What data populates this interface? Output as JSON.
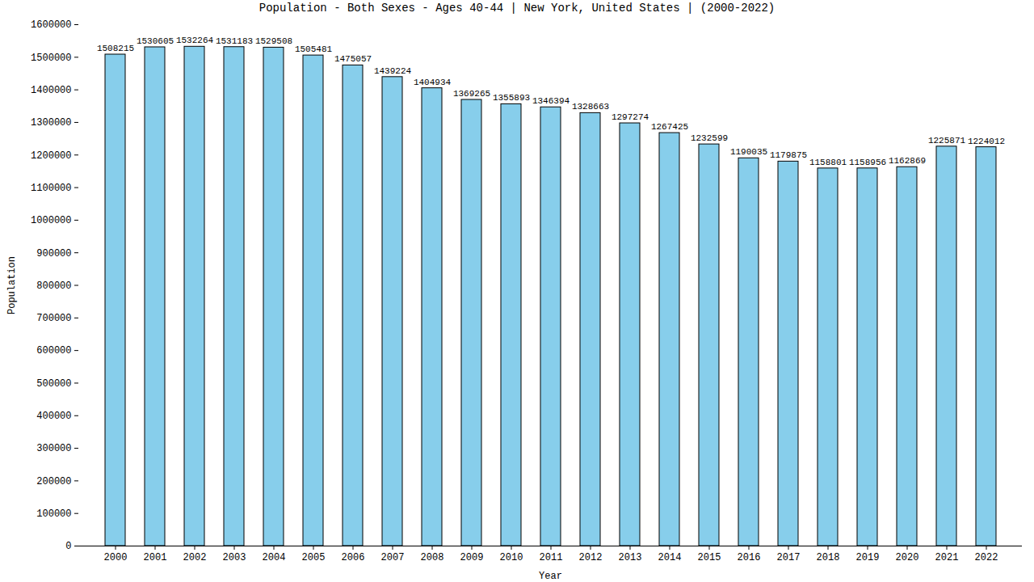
{
  "chart_data": {
    "type": "bar",
    "title": "Population - Both Sexes - Ages 40-44 | New York, United States |  (2000-2022)",
    "x_label": "Year",
    "y_label": "Population",
    "categories": [
      "2000",
      "2001",
      "2002",
      "2003",
      "2004",
      "2005",
      "2006",
      "2007",
      "2008",
      "2009",
      "2010",
      "2011",
      "2012",
      "2013",
      "2014",
      "2015",
      "2016",
      "2017",
      "2018",
      "2019",
      "2020",
      "2021",
      "2022"
    ],
    "values": [
      1508215,
      1530605,
      1532264,
      1531183,
      1529508,
      1505481,
      1475057,
      1439224,
      1404934,
      1369265,
      1355893,
      1346394,
      1328663,
      1297274,
      1267425,
      1232599,
      1190035,
      1179875,
      1158801,
      1158956,
      1162869,
      1225871,
      1224012
    ],
    "color": "#87ceeb",
    "ylim": [
      0,
      1600000
    ],
    "yticks": [
      0,
      100000,
      200000,
      300000,
      400000,
      500000,
      600000,
      700000,
      800000,
      900000,
      1000000,
      1100000,
      1200000,
      1300000,
      1400000,
      1500000,
      1600000
    ],
    "grid": false,
    "data_labels": true
  }
}
